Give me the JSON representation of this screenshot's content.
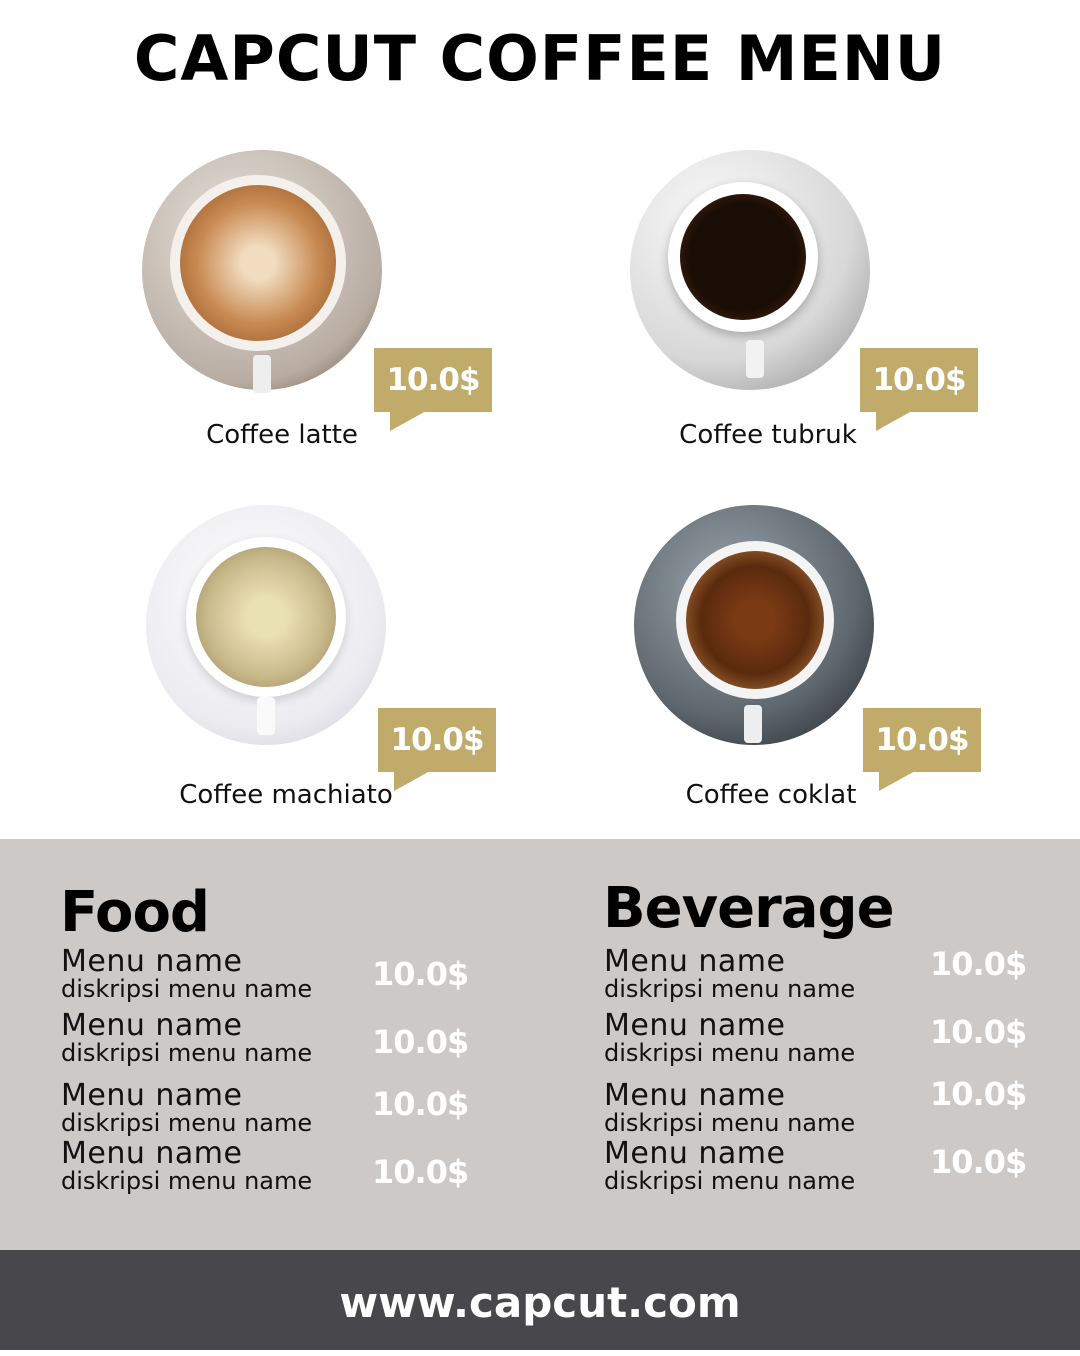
{
  "title": "CAPCUT COFFEE MENU",
  "products": [
    {
      "name": "Coffee latte",
      "price": "10.0$"
    },
    {
      "name": "Coffee tubruk",
      "price": "10.0$"
    },
    {
      "name": "Coffee machiato",
      "price": "10.0$"
    },
    {
      "name": "Coffee coklat",
      "price": "10.0$"
    }
  ],
  "food": {
    "title": "Food",
    "items": [
      {
        "name": "Menu name",
        "desc": "diskripsi menu name",
        "price": "10.0$"
      },
      {
        "name": "Menu name",
        "desc": "diskripsi menu name",
        "price": "10.0$"
      },
      {
        "name": "Menu name",
        "desc": "diskripsi menu name",
        "price": "10.0$"
      },
      {
        "name": "Menu name",
        "desc": "diskripsi menu name",
        "price": "10.0$"
      }
    ]
  },
  "beverage": {
    "title": "Beverage",
    "items": [
      {
        "name": "Menu name",
        "desc": "diskripsi menu name",
        "price": "10.0$"
      },
      {
        "name": "Menu name",
        "desc": "diskripsi menu name",
        "price": "10.0$"
      },
      {
        "name": "Menu name",
        "desc": "diskripsi menu name",
        "price": "10.0$"
      },
      {
        "name": "Menu name",
        "desc": "diskripsi menu name",
        "price": "10.0$"
      }
    ]
  },
  "footer": "www.capcut.com",
  "colors": {
    "accent": "#c0ab6b",
    "panel": "#ccc9c6",
    "footer": "#48474b"
  }
}
